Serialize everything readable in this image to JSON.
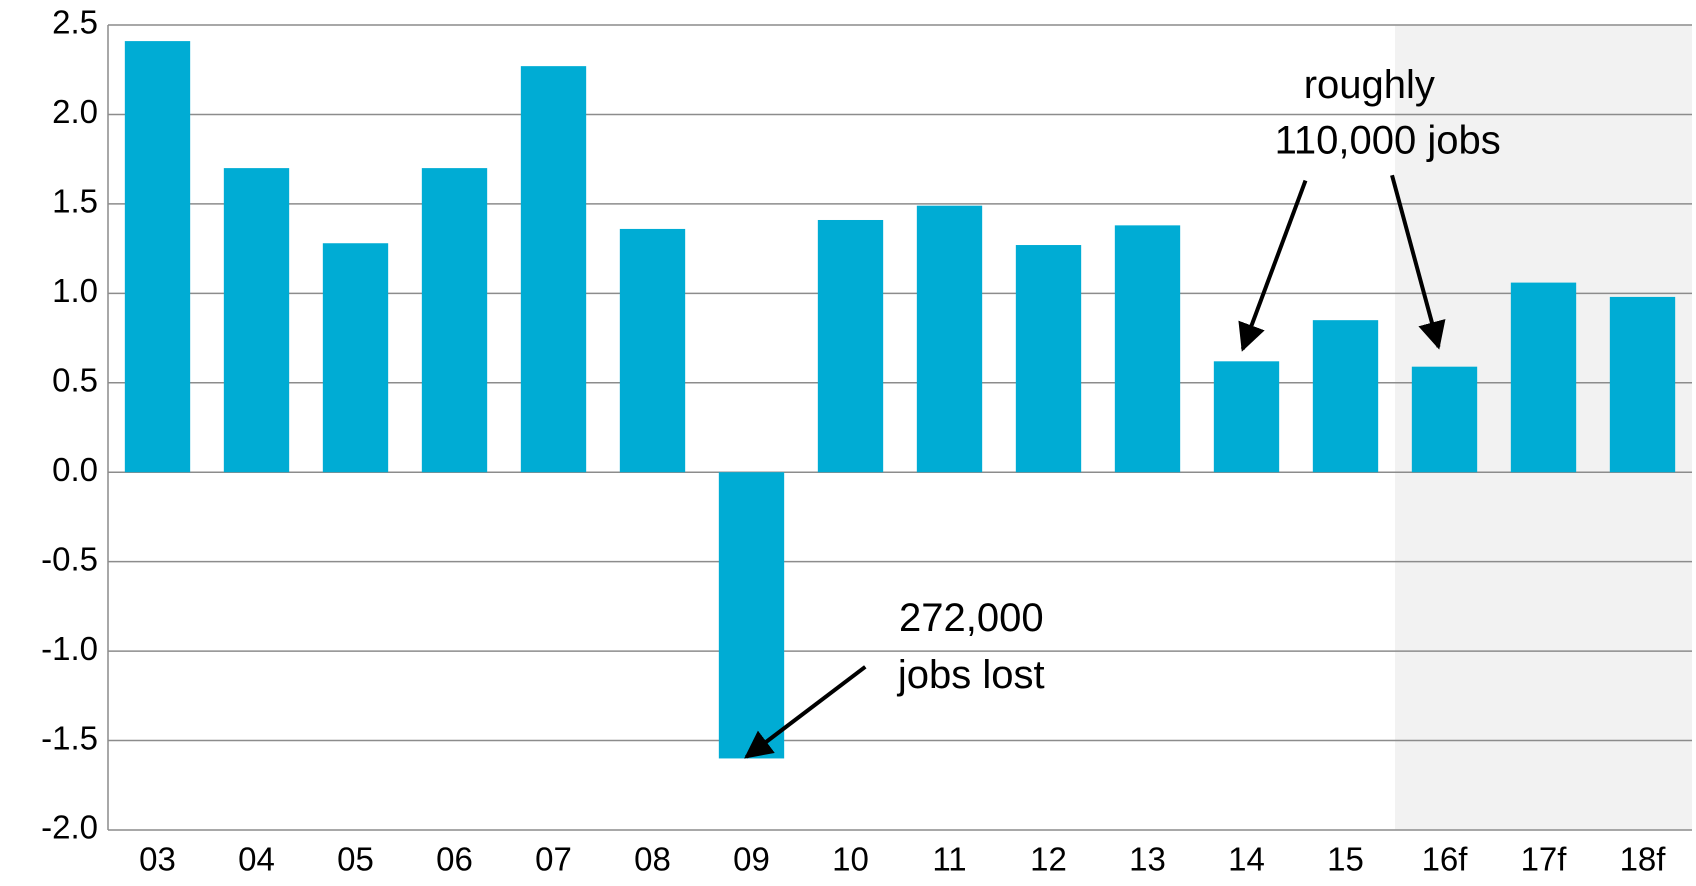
{
  "chart_data": {
    "type": "bar",
    "categories": [
      "03",
      "04",
      "05",
      "06",
      "07",
      "08",
      "09",
      "10",
      "11",
      "12",
      "13",
      "14",
      "15",
      "16f",
      "17f",
      "18f"
    ],
    "values": [
      2.41,
      1.7,
      1.28,
      1.7,
      2.27,
      1.36,
      -1.6,
      1.41,
      1.49,
      1.27,
      1.38,
      0.62,
      0.85,
      0.59,
      1.06,
      0.98
    ],
    "color": "#00acd4",
    "ylim": [
      -2.0,
      2.5
    ],
    "yticks": [
      {
        "value": -2.0,
        "label": "-2.0"
      },
      {
        "value": -1.5,
        "label": "-1.5"
      },
      {
        "value": -1.0,
        "label": "-1.0"
      },
      {
        "value": -0.5,
        "label": "-0.5"
      },
      {
        "value": 0,
        "label": "0.0"
      },
      {
        "value": 0.5,
        "label": "0.5"
      },
      {
        "value": 1.0,
        "label": "1.0"
      },
      {
        "value": 1.5,
        "label": "1.5"
      },
      {
        "value": 2.0,
        "label": "2.0"
      },
      {
        "value": 2.5,
        "label": "2.5"
      }
    ],
    "grid": true,
    "annotations": [
      {
        "lines": [
          "272,000",
          "jobs lost"
        ]
      },
      {
        "lines": [
          "roughly",
          "110,000 jobs"
        ]
      }
    ]
  }
}
